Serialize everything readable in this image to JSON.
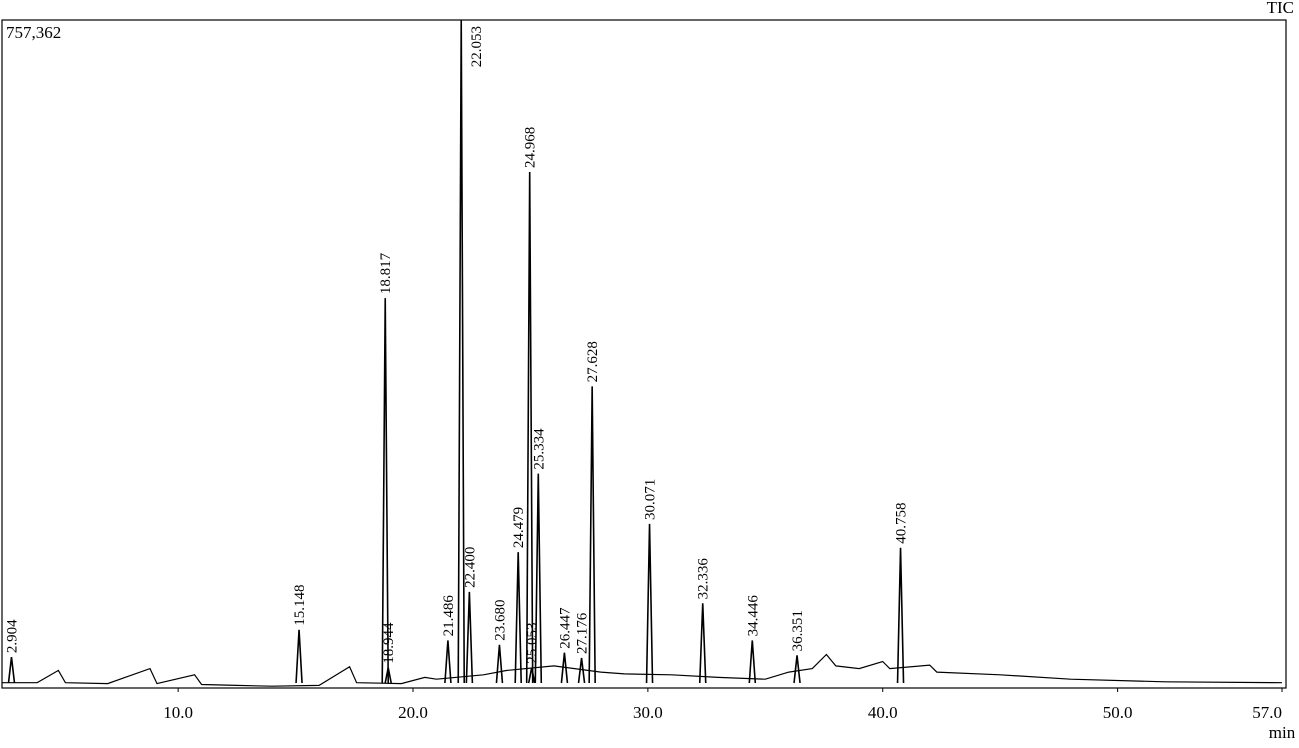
{
  "chart_data": {
    "type": "chromatogram",
    "title": "TIC",
    "x_label": "min",
    "x": [
      2.904,
      15.148,
      18.817,
      18.944,
      21.486,
      22.053,
      22.4,
      23.68,
      24.479,
      24.968,
      25.053,
      25.334,
      26.447,
      27.176,
      27.628,
      30.071,
      32.336,
      34.446,
      36.351,
      40.758
    ],
    "value_labels": [
      "2.904",
      "15.148",
      "18.817",
      "18.944",
      "21.486",
      "22.053",
      "22.400",
      "23.680",
      "24.479",
      "24.968",
      "25.053",
      "25.334",
      "26.447",
      "27.176",
      "27.628",
      "30.071",
      "32.336",
      "34.446",
      "36.351",
      "40.758"
    ],
    "values": [
      35000,
      66000,
      442000,
      23000,
      54000,
      757362,
      109000,
      49000,
      154000,
      585000,
      23000,
      243000,
      40000,
      34000,
      342000,
      186000,
      96000,
      54000,
      37000,
      159000
    ],
    "color": "#000000",
    "baseline": {
      "x": [
        2.5,
        4.0,
        4.9,
        5.2,
        7.0,
        8.8,
        9.1,
        10.7,
        11.0,
        12.5,
        14.0,
        16.0,
        17.3,
        17.6,
        19.5,
        20.5,
        21.0,
        23.0,
        24.0,
        26.0,
        28.0,
        29.0,
        31.0,
        33.0,
        35.0,
        36.0,
        37.0,
        37.6,
        38.0,
        39.0,
        40.0,
        40.3,
        42.0,
        42.3,
        45.0,
        48.0,
        52.0,
        57.0
      ],
      "values": [
        6000,
        6000,
        20000,
        6000,
        5000,
        22000,
        5000,
        15000,
        4000,
        3000,
        2000,
        3000,
        24000,
        6000,
        5000,
        12000,
        10000,
        15000,
        20000,
        25000,
        18000,
        16000,
        15000,
        12000,
        10000,
        18000,
        22000,
        38000,
        25000,
        22000,
        30000,
        22000,
        26000,
        18000,
        15000,
        10000,
        7000,
        6000
      ]
    },
    "xlim": [
      2.5,
      57.0
    ],
    "ylim": [
      0,
      757362
    ],
    "xticks": [
      {
        "value": 10,
        "label": "10.0"
      },
      {
        "value": 20,
        "label": "20.0"
      },
      {
        "value": 30,
        "label": "30.0"
      },
      {
        "value": 40,
        "label": "40.0"
      },
      {
        "value": 50,
        "label": "50.0"
      },
      {
        "value": 57,
        "label": "57.0"
      }
    ],
    "yticks": [
      {
        "value": 757362,
        "label": "757,362"
      }
    ]
  }
}
